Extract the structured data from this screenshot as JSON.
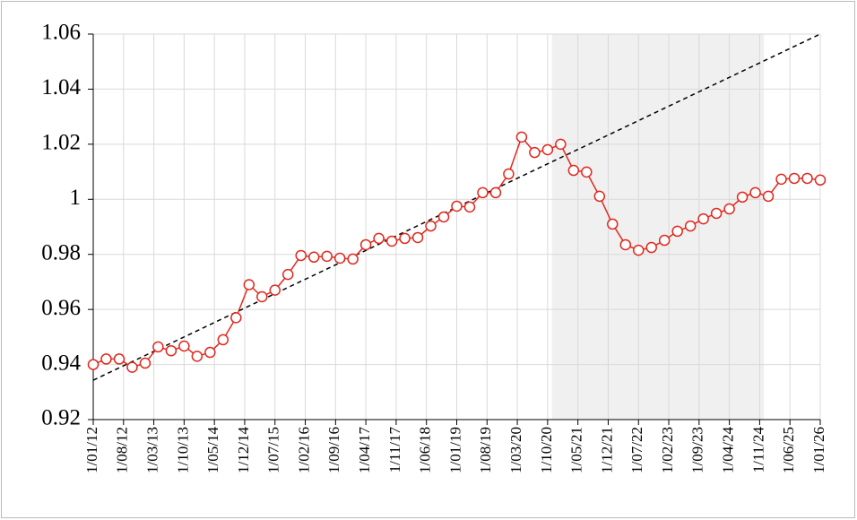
{
  "chart_data": {
    "type": "line",
    "x": [
      "2012-01",
      "2012-04",
      "2012-07",
      "2012-10",
      "2013-01",
      "2013-04",
      "2013-07",
      "2013-10",
      "2014-01",
      "2014-04",
      "2014-07",
      "2014-10",
      "2015-01",
      "2015-04",
      "2015-07",
      "2015-10",
      "2016-01",
      "2016-04",
      "2016-07",
      "2016-10",
      "2017-01",
      "2017-04",
      "2017-07",
      "2017-10",
      "2018-01",
      "2018-04",
      "2018-07",
      "2018-10",
      "2019-01",
      "2019-04",
      "2019-07",
      "2019-10",
      "2020-01",
      "2020-04",
      "2020-07",
      "2020-10",
      "2021-01",
      "2021-04",
      "2021-07",
      "2021-10",
      "2022-01",
      "2022-04",
      "2022-07",
      "2022-10",
      "2023-01",
      "2023-04",
      "2023-07",
      "2023-10",
      "2024-01",
      "2024-04",
      "2024-07",
      "2024-10",
      "2025-01",
      "2025-04",
      "2025-07",
      "2025-10",
      "2026-01"
    ],
    "series": [
      {
        "color": "#e0281e",
        "values": [
          0.94,
          0.942,
          0.942,
          0.939,
          0.9405,
          0.9464,
          0.945,
          0.9467,
          0.943,
          0.9444,
          0.949,
          0.957,
          0.969,
          0.9646,
          0.967,
          0.9727,
          0.9796,
          0.979,
          0.9793,
          0.9786,
          0.9783,
          0.9835,
          0.9858,
          0.9848,
          0.9858,
          0.9861,
          0.9903,
          0.9936,
          0.9975,
          0.9972,
          1.0024,
          1.0024,
          1.0092,
          1.0226,
          1.017,
          1.018,
          1.02,
          1.0105,
          1.0099,
          1.0011,
          0.991,
          0.9835,
          0.9815,
          0.9825,
          0.9851,
          0.9884,
          0.9903,
          0.9929,
          0.9949,
          0.9965,
          1.0008,
          1.0024,
          1.0011,
          1.0073,
          1.0076,
          1.0076,
          1.007
        ]
      }
    ],
    "trend": {
      "x": [
        "2012-01",
        "2026-01"
      ],
      "values": [
        0.9343,
        1.06
      ],
      "color": "#000000"
    },
    "shaded_range": [
      "2020-11",
      "2024-12"
    ],
    "shade_color": "#f0f0f0",
    "xlim": [
      "2012-01",
      "2026-01"
    ],
    "xticks": [
      {
        "value": "2012-01",
        "label": "1/01/12"
      },
      {
        "value": "2012-08",
        "label": "1/08/12"
      },
      {
        "value": "2013-03",
        "label": "1/03/13"
      },
      {
        "value": "2013-10",
        "label": "1/10/13"
      },
      {
        "value": "2014-05",
        "label": "1/05/14"
      },
      {
        "value": "2014-12",
        "label": "1/12/14"
      },
      {
        "value": "2015-07",
        "label": "1/07/15"
      },
      {
        "value": "2016-02",
        "label": "1/02/16"
      },
      {
        "value": "2016-09",
        "label": "1/09/16"
      },
      {
        "value": "2017-04",
        "label": "1/04/17"
      },
      {
        "value": "2017-11",
        "label": "1/11/17"
      },
      {
        "value": "2018-06",
        "label": "1/06/18"
      },
      {
        "value": "2019-01",
        "label": "1/01/19"
      },
      {
        "value": "2019-08",
        "label": "1/08/19"
      },
      {
        "value": "2020-03",
        "label": "1/03/20"
      },
      {
        "value": "2020-10",
        "label": "1/10/20"
      },
      {
        "value": "2021-05",
        "label": "1/05/21"
      },
      {
        "value": "2021-12",
        "label": "1/12/21"
      },
      {
        "value": "2022-07",
        "label": "1/07/22"
      },
      {
        "value": "2023-02",
        "label": "1/02/23"
      },
      {
        "value": "2023-09",
        "label": "1/09/23"
      },
      {
        "value": "2024-04",
        "label": "1/04/24"
      },
      {
        "value": "2024-11",
        "label": "1/11/24"
      },
      {
        "value": "2025-06",
        "label": "1/06/25"
      },
      {
        "value": "2026-01",
        "label": "1/01/26"
      }
    ],
    "ylim": [
      0.92,
      1.06
    ],
    "yticks": [
      0.92,
      0.94,
      0.96,
      0.98,
      1,
      1.02,
      1.04,
      1.06
    ],
    "grid": true
  }
}
